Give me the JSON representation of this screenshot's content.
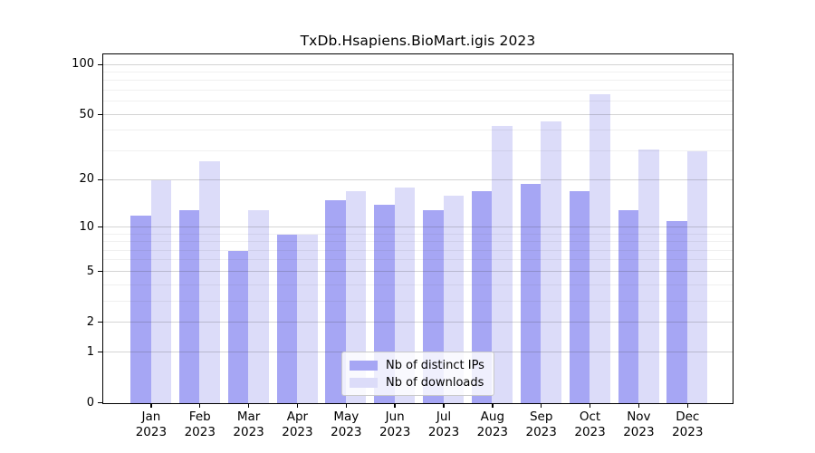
{
  "chart_data": {
    "type": "bar",
    "title": "TxDb.Hsapiens.BioMart.igis 2023",
    "year": "2023",
    "categories": [
      "Jan",
      "Feb",
      "Mar",
      "Apr",
      "May",
      "Jun",
      "Jul",
      "Aug",
      "Sep",
      "Oct",
      "Nov",
      "Dec"
    ],
    "series": [
      {
        "name": "Nb of distinct IPs",
        "color": "#a6a6f4",
        "values": [
          12,
          13,
          7,
          9,
          15,
          14,
          13,
          17,
          19,
          17,
          13,
          11
        ]
      },
      {
        "name": "Nb of downloads",
        "color": "#dcdcf9",
        "values": [
          20,
          26,
          13,
          9,
          17,
          18,
          16,
          43,
          46,
          67,
          31,
          30
        ]
      }
    ],
    "xlabel": "",
    "ylabel": "",
    "y_scale": "log10(1+x)",
    "ylim": [
      0,
      100
    ],
    "y_ticks_major": [
      0,
      1,
      2,
      5,
      10,
      20,
      50,
      100
    ],
    "y_ticks_minor": [
      3,
      4,
      6,
      7,
      8,
      9,
      30,
      40,
      60,
      70,
      80,
      90
    ],
    "grid": true,
    "legend_position": "bottom-center-inside",
    "colors": {
      "axis": "#000000",
      "grid_major": "#d0d0d0",
      "grid_minor": "#ececec",
      "legend_border": "#c9c9c9",
      "background": "#ffffff"
    }
  }
}
